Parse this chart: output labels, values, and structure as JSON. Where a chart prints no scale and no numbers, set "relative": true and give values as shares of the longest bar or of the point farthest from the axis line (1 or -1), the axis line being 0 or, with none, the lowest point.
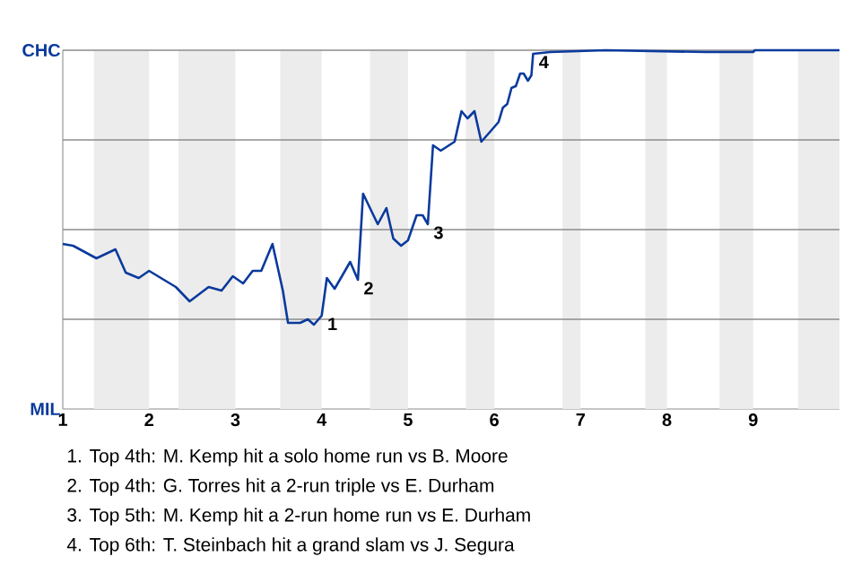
{
  "chart_data": {
    "type": "line",
    "color": "#0a3a9c",
    "relative": true,
    "x": [
      1.0,
      1.12,
      1.39,
      1.61,
      1.73,
      1.88,
      2.0,
      2.31,
      2.47,
      2.69,
      2.84,
      2.97,
      3.09,
      3.2,
      3.3,
      3.43,
      3.55,
      3.61,
      3.75,
      3.84,
      3.91,
      4.0,
      4.06,
      4.15,
      4.33,
      4.42,
      4.48,
      4.65,
      4.75,
      4.83,
      4.92,
      5.0,
      5.1,
      5.17,
      5.23,
      5.29,
      5.38,
      5.54,
      5.62,
      5.69,
      5.77,
      5.85,
      5.96,
      6.05,
      6.1,
      6.15,
      6.2,
      6.25,
      6.3,
      6.34,
      6.39,
      6.43,
      6.45,
      6.65,
      7.29,
      8.45,
      9.0,
      9.02,
      10
    ],
    "values": [
      0.46,
      0.455,
      0.42,
      0.445,
      0.38,
      0.365,
      0.385,
      0.34,
      0.3,
      0.34,
      0.33,
      0.37,
      0.35,
      0.385,
      0.385,
      0.46,
      0.33,
      0.24,
      0.24,
      0.25,
      0.235,
      0.26,
      0.365,
      0.335,
      0.41,
      0.36,
      0.6,
      0.515,
      0.56,
      0.475,
      0.455,
      0.47,
      0.54,
      0.54,
      0.515,
      0.735,
      0.72,
      0.745,
      0.83,
      0.81,
      0.83,
      0.745,
      0.775,
      0.8,
      0.84,
      0.85,
      0.895,
      0.9,
      0.935,
      0.935,
      0.915,
      0.93,
      0.99,
      0.995,
      1,
      0.995,
      0.995,
      1,
      1
    ],
    "xlim": [
      1,
      10
    ],
    "xticks": [
      1,
      2,
      3,
      4,
      5,
      6,
      7,
      8,
      9
    ],
    "grid": "y",
    "marker": "none",
    "line_style": "solid",
    "bands": [
      {
        "axis": "x",
        "from": 1.36,
        "to": 2,
        "color": "#ececec"
      },
      {
        "axis": "x",
        "from": 2.34,
        "to": 3,
        "color": "#ececec"
      },
      {
        "axis": "x",
        "from": 3.52,
        "to": 4,
        "color": "#ececec"
      },
      {
        "axis": "x",
        "from": 4.56,
        "to": 5,
        "color": "#ececec"
      },
      {
        "axis": "x",
        "from": 5.67,
        "to": 6,
        "color": "#ececec"
      },
      {
        "axis": "x",
        "from": 6.79,
        "to": 7,
        "color": "#ececec"
      },
      {
        "axis": "x",
        "from": 7.75,
        "to": 8,
        "color": "#ececec"
      },
      {
        "axis": "x",
        "from": 8.61,
        "to": 9,
        "color": "#ececec"
      },
      {
        "axis": "x",
        "from": 9.52,
        "to": 10,
        "color": "#ececec"
      }
    ],
    "annotations": [
      {
        "text": "1",
        "x": 4.0,
        "y": 0.26
      },
      {
        "text": "2",
        "x": 4.42,
        "y": 0.36
      },
      {
        "text": "3",
        "x": 5.23,
        "y": 0.515
      },
      {
        "text": "4",
        "x": 6.45,
        "y": 0.99
      },
      "CHC",
      "MIL",
      "1. Top 4th: M. Kemp hit a solo home run vs B. Moore",
      "2. Top 4th: G. Torres hit a 2-run triple vs E. Durham",
      "3. Top 5th: M. Kemp hit a 2-run home run vs E. Durham",
      "4. Top 6th: T. Steinbach hit a grand slam vs J. Segura"
    ]
  }
}
